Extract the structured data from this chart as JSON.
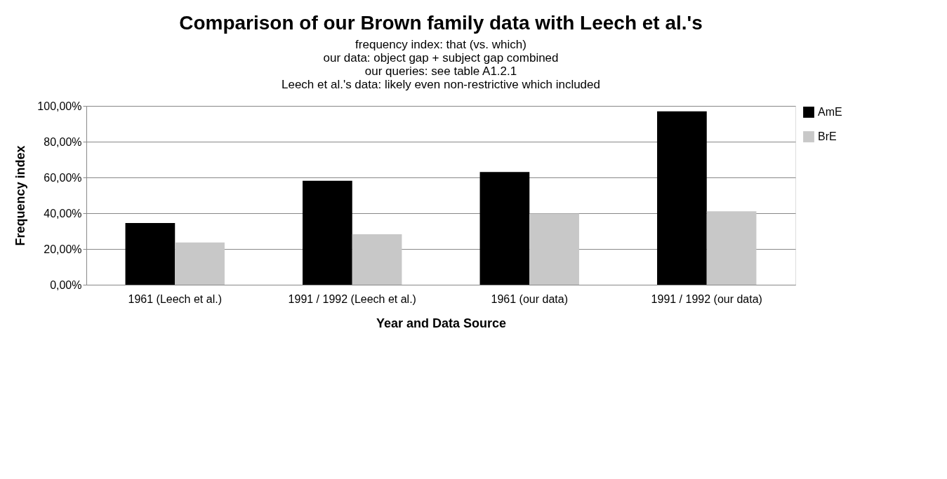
{
  "chart_data": {
    "type": "bar",
    "title": "Comparison of our Brown family data with Leech et al.'s",
    "subtitle": [
      "frequency index:  that (vs. which)",
      "our data: object gap + subject gap combined",
      "our queries: see table A1.2.1",
      "Leech et al.'s data: likely even non-restrictive which included"
    ],
    "xlabel": "Year and Data Source",
    "ylabel": "Frequency index",
    "categories": [
      "1961 (Leech et al.)",
      "1991 / 1992 (Leech et al.)",
      "1961 (our data)",
      "1991 / 1992 (our data)"
    ],
    "series": [
      {
        "name": "AmE",
        "color": "#000000",
        "values": [
          34.5,
          58.1,
          63.0,
          97.0
        ]
      },
      {
        "name": "BrE",
        "color": "#c8c8c8",
        "values": [
          23.6,
          28.2,
          39.8,
          41.1
        ]
      }
    ],
    "ylim": [
      0,
      100
    ],
    "yticks": [
      {
        "value": 0,
        "label": "0,00%"
      },
      {
        "value": 20,
        "label": "20,00%"
      },
      {
        "value": 40,
        "label": "40,00%"
      },
      {
        "value": 60,
        "label": "60,00%"
      },
      {
        "value": 80,
        "label": "80,00%"
      },
      {
        "value": 100,
        "label": "100,00%"
      }
    ],
    "grid": "y",
    "legend": "right"
  }
}
